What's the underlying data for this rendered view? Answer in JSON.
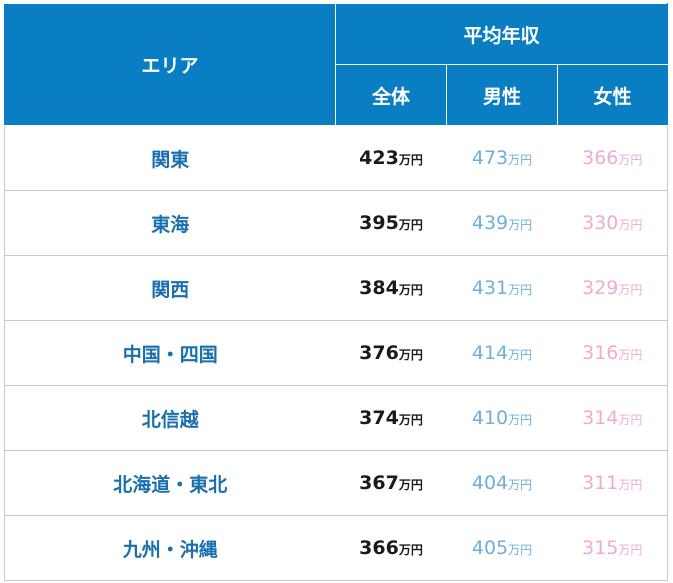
{
  "header": {
    "area_label": "エリア",
    "group_label": "平均年収",
    "col_all": "全体",
    "col_men": "男性",
    "col_women": "女性"
  },
  "unit": "万円",
  "colors": {
    "header_bg": "#0a7ec2",
    "area_text": "#1a6fad",
    "all_text": "#1a1a1a",
    "men_text": "#6db0db",
    "women_text": "#eeaccb",
    "row_border": "#c8c8c8"
  },
  "rows": [
    {
      "area": "関東",
      "all": "423",
      "men": "473",
      "women": "366"
    },
    {
      "area": "東海",
      "all": "395",
      "men": "439",
      "women": "330"
    },
    {
      "area": "関西",
      "all": "384",
      "men": "431",
      "women": "329"
    },
    {
      "area": "中国・四国",
      "all": "376",
      "men": "414",
      "women": "316"
    },
    {
      "area": "北信越",
      "all": "374",
      "men": "410",
      "women": "314"
    },
    {
      "area": "北海道・東北",
      "all": "367",
      "men": "404",
      "women": "311"
    },
    {
      "area": "九州・沖縄",
      "all": "366",
      "men": "405",
      "women": "315"
    }
  ]
}
